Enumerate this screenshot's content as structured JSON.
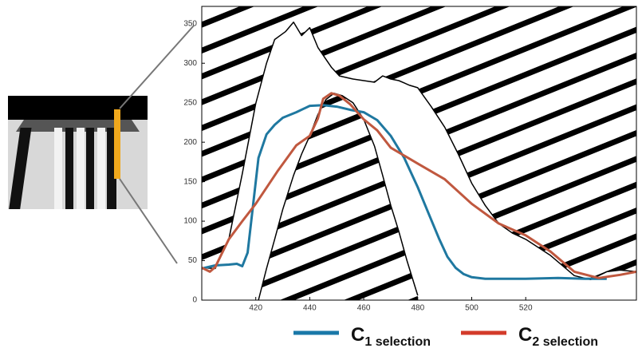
{
  "chart_data": {
    "type": "line",
    "xlim": [
      400,
      561
    ],
    "ylim": [
      0,
      372
    ],
    "xticks": [
      420,
      440,
      460,
      480,
      500,
      520
    ],
    "yticks": [
      0,
      50,
      100,
      150,
      200,
      250,
      300,
      350
    ],
    "series": [
      {
        "name": "C",
        "name_subscript": "1 selection",
        "color": "#1f78a0",
        "x": [
          400,
          405,
          410,
          413,
          415,
          417,
          419,
          421,
          424,
          427,
          430,
          435,
          440,
          445,
          450,
          455,
          460,
          465,
          470,
          475,
          480,
          484,
          488,
          491,
          494,
          497,
          500,
          505,
          510,
          520,
          532,
          542,
          550
        ],
        "values": [
          40,
          44,
          45,
          46,
          43,
          60,
          120,
          180,
          210,
          222,
          231,
          238,
          246,
          247,
          245,
          241,
          238,
          228,
          208,
          180,
          143,
          110,
          77,
          55,
          41,
          33,
          29,
          27,
          27,
          27,
          28,
          27,
          27
        ]
      },
      {
        "name": "C",
        "name_subscript": "2 selection",
        "color": "#c0583f",
        "x": [
          400,
          403,
          405,
          410,
          415,
          420,
          428,
          435,
          440,
          443,
          445,
          448,
          451,
          455,
          460,
          465,
          470,
          475,
          480,
          490,
          500,
          510,
          520,
          529,
          538,
          547,
          555,
          561
        ],
        "values": [
          41,
          36,
          42,
          77,
          100,
          122,
          163,
          196,
          208,
          230,
          255,
          262,
          259,
          248,
          229,
          215,
          193,
          183,
          173,
          153,
          122,
          97,
          82,
          62,
          36,
          28,
          32,
          36
        ]
      },
      {
        "color": "#000000",
        "x": [
          400,
          405,
          410,
          415,
          420,
          424,
          427,
          431,
          434,
          437,
          440,
          443,
          445,
          448,
          451,
          456,
          460,
          464,
          467,
          470,
          473,
          477,
          480,
          485,
          490,
          495,
          500,
          505,
          510,
          515,
          520,
          529,
          538,
          544,
          550,
          555,
          561
        ],
        "values": [
          41,
          40,
          77,
          160,
          249,
          300,
          330,
          340,
          352,
          335,
          345,
          320,
          310,
          295,
          284,
          280,
          278,
          276,
          284,
          280,
          278,
          272,
          269,
          245,
          219,
          185,
          148,
          120,
          97,
          85,
          77,
          57,
          31,
          26,
          36,
          38,
          36
        ]
      },
      {
        "color": "#000000",
        "x": [
          421,
          424,
          427,
          430,
          434,
          437,
          440,
          443,
          446,
          449,
          452,
          456,
          460,
          464,
          467,
          470,
          473,
          476,
          480
        ],
        "values": [
          0,
          40,
          77,
          115,
          158,
          185,
          208,
          235,
          254,
          262,
          259,
          250,
          229,
          195,
          158,
          120,
          87,
          50,
          6
        ]
      }
    ]
  }
}
